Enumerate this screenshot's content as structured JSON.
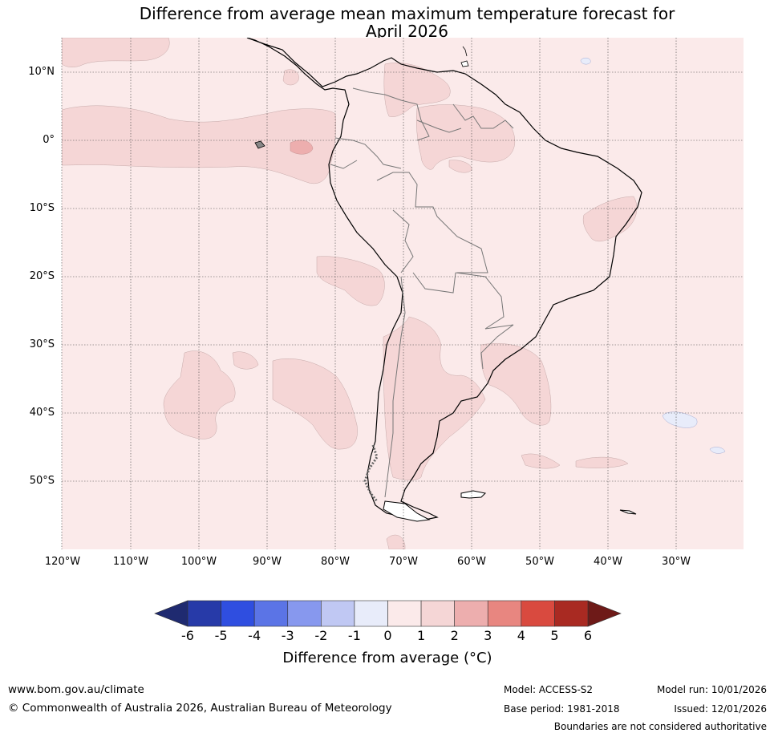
{
  "title": {
    "line1": "Difference from average mean maximum temperature forecast for",
    "line2": "April 2026"
  },
  "map": {
    "region": "South America",
    "lat_labels": [
      "10°N",
      "0°",
      "10°S",
      "20°S",
      "30°S",
      "40°S",
      "50°S"
    ],
    "lon_labels": [
      "120°W",
      "110°W",
      "100°W",
      "90°W",
      "80°W",
      "70°W",
      "60°W",
      "50°W",
      "40°W",
      "30°W"
    ],
    "background_fill_color": "#fbeaea",
    "anomaly_0_1_color": "#fbeaea",
    "anomaly_1_2_color": "#f5d6d6",
    "anomaly_2_3_color": "#edaeae",
    "anomaly_neg_1_0_color": "#e8ecfa"
  },
  "colorbar": {
    "label": "Difference from average (°C)",
    "ticks": [
      "-6",
      "-5",
      "-4",
      "-3",
      "-2",
      "-1",
      "0",
      "1",
      "2",
      "3",
      "4",
      "5",
      "6"
    ],
    "colors": [
      "#273aa8",
      "#2f4ee0",
      "#5b74e6",
      "#8798ee",
      "#c0c8f3",
      "#e8ecfa",
      "#fbeaea",
      "#f5d6d6",
      "#edaeae",
      "#e88680",
      "#d94a3f",
      "#a92a22"
    ],
    "under_color": "#1f2a70",
    "over_color": "#6e1a18"
  },
  "footer": {
    "website": "www.bom.gov.au/climate",
    "copyright": "© Commonwealth of Australia 2026, Australian Bureau of Meteorology",
    "model": "Model: ACCESS-S2",
    "base_period": "Base period: 1981-2018",
    "model_run": "Model run: 10/01/2026",
    "issued": "Issued: 12/01/2026",
    "disclaimer": "Boundaries are not considered authoritative"
  }
}
